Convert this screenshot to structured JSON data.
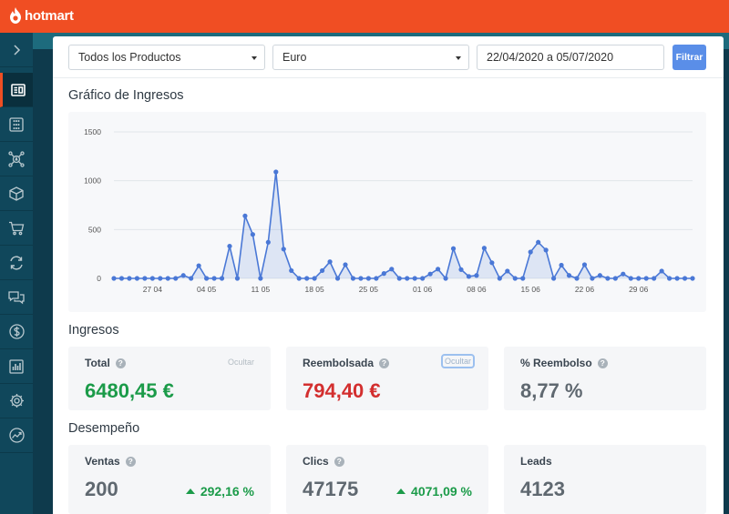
{
  "brand": {
    "name": "hotmart",
    "color": "#f04e23"
  },
  "sidebar": {
    "items": [
      {
        "icon": "chevron-right-icon"
      },
      {
        "icon": "dashboard-icon",
        "active": true
      },
      {
        "icon": "grid-icon"
      },
      {
        "icon": "network-icon"
      },
      {
        "icon": "box-icon"
      },
      {
        "icon": "cart-icon"
      },
      {
        "icon": "refresh-icon"
      },
      {
        "icon": "chat-icon"
      },
      {
        "icon": "dollar-icon"
      },
      {
        "icon": "bar-chart-icon"
      },
      {
        "icon": "settings-icon"
      },
      {
        "icon": "trend-icon"
      }
    ]
  },
  "filters": {
    "product": "Todos los Productos",
    "currency": "Euro",
    "date_range": "22/04/2020 a 05/07/2020",
    "submit_label": "Filtrar"
  },
  "chart_section": {
    "title": "Gráfico de Ingresos"
  },
  "chart_data": {
    "type": "area",
    "title": "Gráfico de Ingresos",
    "xlabel": "",
    "ylabel": "",
    "ylim": [
      0,
      1500
    ],
    "yticks": [
      "0",
      "500",
      "1000",
      "1500"
    ],
    "xticks": [
      {
        "label": "27 04",
        "index": 5
      },
      {
        "label": "04 05",
        "index": 12
      },
      {
        "label": "11 05",
        "index": 19
      },
      {
        "label": "18 05",
        "index": 26
      },
      {
        "label": "25 05",
        "index": 33
      },
      {
        "label": "01 06",
        "index": 40
      },
      {
        "label": "08 06",
        "index": 47
      },
      {
        "label": "15 06",
        "index": 54
      },
      {
        "label": "22 06",
        "index": 61
      },
      {
        "label": "29 06",
        "index": 68
      }
    ],
    "series": [
      {
        "name": "Ingresos",
        "color": "#4a78d6",
        "values": [
          0,
          0,
          0,
          0,
          0,
          0,
          0,
          0,
          0,
          30,
          0,
          130,
          0,
          0,
          0,
          330,
          0,
          640,
          450,
          0,
          370,
          1090,
          300,
          80,
          0,
          0,
          0,
          80,
          170,
          0,
          140,
          0,
          0,
          0,
          0,
          50,
          95,
          0,
          0,
          0,
          0,
          45,
          95,
          0,
          305,
          90,
          20,
          30,
          310,
          160,
          0,
          75,
          0,
          0,
          270,
          370,
          290,
          0,
          135,
          30,
          0,
          140,
          0,
          30,
          0,
          0,
          45,
          0,
          0,
          0,
          0,
          75,
          0,
          0,
          0,
          0
        ]
      }
    ]
  },
  "revenue_section": {
    "title": "Ingresos",
    "cards": [
      {
        "label": "Total",
        "value": "6480,45 €",
        "hide_label": "Ocultar",
        "value_color": "#1b9b49"
      },
      {
        "label": "Reembolsada",
        "value": "794,40 €",
        "hide_label": "Ocultar",
        "value_color": "#d32f2f"
      },
      {
        "label": "% Reembolso",
        "value": "8,77 %",
        "value_color": "#5f6870"
      }
    ]
  },
  "performance_section": {
    "title": "Desempeño",
    "cards": [
      {
        "label": "Ventas",
        "value": "200",
        "trend": "292,16 %"
      },
      {
        "label": "Clics",
        "value": "47175",
        "trend": "4071,09 %"
      },
      {
        "label": "Leads",
        "value": "4123"
      }
    ]
  }
}
